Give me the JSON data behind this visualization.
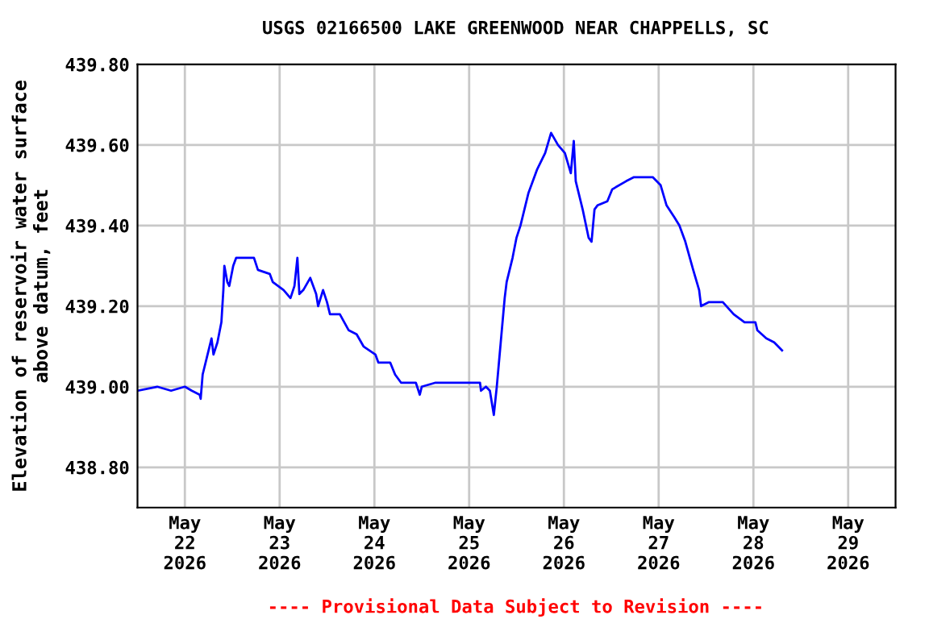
{
  "chart_data": {
    "type": "line",
    "title": "USGS 02166500 LAKE GREENWOOD NEAR CHAPPELLS, SC",
    "ylabel": "Elevation of reservoir water surface\nabove datum, feet",
    "annotations": [
      "---- Provisional Data Subject to Revision ----"
    ],
    "series": [
      {
        "color": "#0000ff",
        "x": [
          "2026-05-21T12:00",
          "2026-05-21T17:00",
          "2026-05-21T20:30",
          "2026-05-22T00:00",
          "2026-05-22T01:45",
          "2026-05-22T03:45",
          "2026-05-22T04:00",
          "2026-05-22T04:30",
          "2026-05-22T06:00",
          "2026-05-22T06:45",
          "2026-05-22T07:15",
          "2026-05-22T08:15",
          "2026-05-22T09:15",
          "2026-05-22T09:45",
          "2026-05-22T10:00",
          "2026-05-22T10:45",
          "2026-05-22T11:15",
          "2026-05-22T12:15",
          "2026-05-22T13:00",
          "2026-05-22T17:30",
          "2026-05-22T18:30",
          "2026-05-22T21:30",
          "2026-05-22T22:15",
          "2026-05-23T01:00",
          "2026-05-23T02:45",
          "2026-05-23T03:45",
          "2026-05-23T04:30",
          "2026-05-23T05:00",
          "2026-05-23T06:00",
          "2026-05-23T07:45",
          "2026-05-23T09:15",
          "2026-05-23T09:45",
          "2026-05-23T11:00",
          "2026-05-23T12:00",
          "2026-05-23T12:45",
          "2026-05-23T15:15",
          "2026-05-23T17:30",
          "2026-05-23T19:30",
          "2026-05-23T21:15",
          "2026-05-24T00:15",
          "2026-05-24T01:00",
          "2026-05-24T04:00",
          "2026-05-24T05:15",
          "2026-05-24T06:45",
          "2026-05-24T10:30",
          "2026-05-24T11:30",
          "2026-05-24T12:00",
          "2026-05-24T15:30",
          "2026-05-25T02:45",
          "2026-05-25T03:00",
          "2026-05-25T04:15",
          "2026-05-25T05:15",
          "2026-05-25T06:15",
          "2026-05-25T07:00",
          "2026-05-25T08:00",
          "2026-05-25T09:00",
          "2026-05-25T09:30",
          "2026-05-25T11:00",
          "2026-05-25T12:00",
          "2026-05-25T13:00",
          "2026-05-25T15:00",
          "2026-05-25T17:15",
          "2026-05-25T19:15",
          "2026-05-25T20:45",
          "2026-05-25T22:30",
          "2026-05-26T00:15",
          "2026-05-26T01:45",
          "2026-05-26T02:30",
          "2026-05-26T03:00",
          "2026-05-26T04:45",
          "2026-05-26T06:15",
          "2026-05-26T07:00",
          "2026-05-26T07:45",
          "2026-05-26T08:30",
          "2026-05-26T11:00",
          "2026-05-26T12:15",
          "2026-05-26T15:45",
          "2026-05-26T17:45",
          "2026-05-26T22:30",
          "2026-05-27T00:30",
          "2026-05-27T02:00",
          "2026-05-27T04:00",
          "2026-05-27T05:15",
          "2026-05-27T06:45",
          "2026-05-27T08:45",
          "2026-05-27T10:15",
          "2026-05-27T10:45",
          "2026-05-27T12:45",
          "2026-05-27T16:15",
          "2026-05-27T19:00",
          "2026-05-27T21:45",
          "2026-05-28T00:30",
          "2026-05-28T01:00",
          "2026-05-28T03:15",
          "2026-05-28T05:15",
          "2026-05-28T07:15"
        ],
        "values": [
          438.99,
          439.0,
          438.99,
          439.0,
          438.99,
          438.98,
          438.97,
          439.03,
          439.09,
          439.12,
          439.08,
          439.11,
          439.16,
          439.24,
          439.3,
          439.26,
          439.25,
          439.3,
          439.32,
          439.32,
          439.29,
          439.28,
          439.26,
          439.24,
          439.22,
          439.25,
          439.32,
          439.23,
          439.24,
          439.27,
          439.23,
          439.2,
          439.24,
          439.21,
          439.18,
          439.18,
          439.14,
          439.13,
          439.1,
          439.08,
          439.06,
          439.06,
          439.03,
          439.01,
          439.01,
          438.98,
          439.0,
          439.01,
          439.01,
          438.99,
          439.0,
          438.99,
          438.93,
          439.0,
          439.11,
          439.22,
          439.26,
          439.32,
          439.37,
          439.4,
          439.48,
          439.54,
          439.58,
          439.63,
          439.6,
          439.58,
          439.53,
          439.61,
          439.51,
          439.44,
          439.37,
          439.36,
          439.44,
          439.45,
          439.46,
          439.49,
          439.51,
          439.52,
          439.52,
          439.5,
          439.45,
          439.42,
          439.4,
          439.36,
          439.29,
          439.24,
          439.2,
          439.21,
          439.21,
          439.18,
          439.16,
          439.16,
          439.14,
          439.12,
          439.11,
          439.09
        ]
      }
    ],
    "xlim": [
      "2026-05-21T12:00",
      "2026-05-29T12:00"
    ],
    "xticks": [
      {
        "value": "2026-05-22",
        "label": "May\n22\n2026"
      },
      {
        "value": "2026-05-23",
        "label": "May\n23\n2026"
      },
      {
        "value": "2026-05-24",
        "label": "May\n24\n2026"
      },
      {
        "value": "2026-05-25",
        "label": "May\n25\n2026"
      },
      {
        "value": "2026-05-26",
        "label": "May\n26\n2026"
      },
      {
        "value": "2026-05-27",
        "label": "May\n27\n2026"
      },
      {
        "value": "2026-05-28",
        "label": "May\n28\n2026"
      },
      {
        "value": "2026-05-29",
        "label": "May\n29\n2026"
      }
    ],
    "ylim": [
      438.7,
      439.8
    ],
    "yticks": [
      {
        "value": 438.8,
        "label": "438.80"
      },
      {
        "value": 439.0,
        "label": "439.00"
      },
      {
        "value": 439.2,
        "label": "439.20"
      },
      {
        "value": 439.4,
        "label": "439.40"
      },
      {
        "value": 439.6,
        "label": "439.60"
      },
      {
        "value": 439.8,
        "label": "439.80"
      }
    ],
    "grid": true,
    "legend": false
  }
}
